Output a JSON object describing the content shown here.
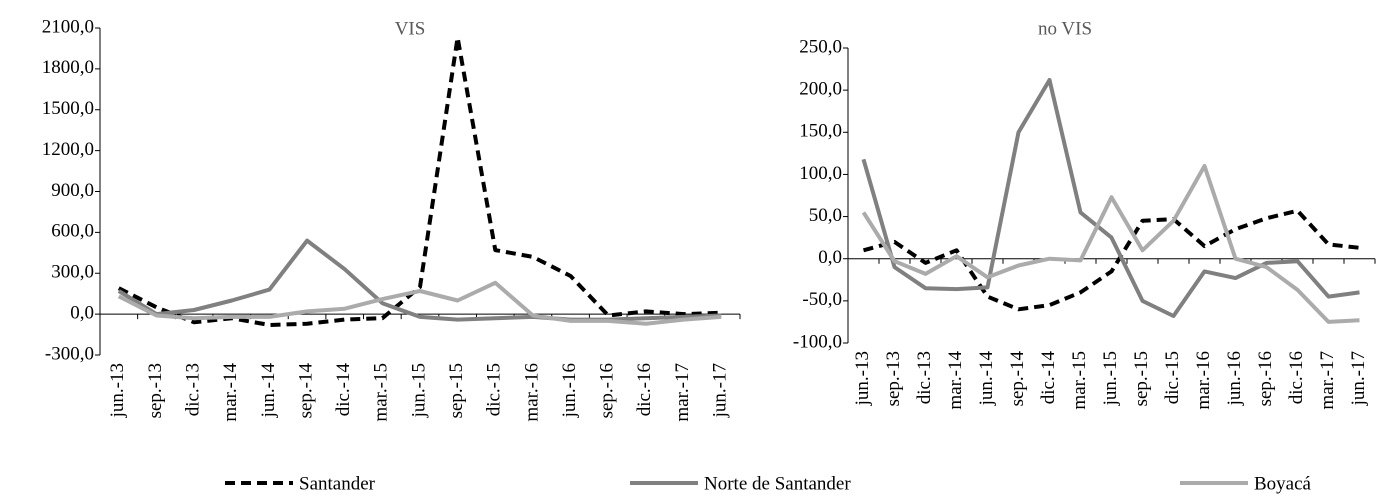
{
  "chart_data": [
    {
      "type": "line",
      "title": "VIS",
      "categories": [
        "jun.-13",
        "sep.-13",
        "dic.-13",
        "mar.-14",
        "jun.-14",
        "sep.-14",
        "dic.-14",
        "mar.-15",
        "jun.-15",
        "sep.-15",
        "dic.-15",
        "mar.-16",
        "jun.-16",
        "sep.-16",
        "dic.-16",
        "mar.-17",
        "jun.-17"
      ],
      "series": [
        {
          "name": "Santander",
          "color": "#000000",
          "dash": true,
          "values": [
            190,
            50,
            -60,
            -30,
            -80,
            -70,
            -40,
            -30,
            200,
            2030,
            470,
            420,
            280,
            -10,
            20,
            0,
            10
          ]
        },
        {
          "name": "Norte de Santander",
          "color": "#808080",
          "dash": false,
          "values": [
            170,
            0,
            30,
            100,
            180,
            540,
            330,
            80,
            -20,
            -40,
            -30,
            -20,
            -40,
            -40,
            -30,
            -20,
            -10
          ]
        },
        {
          "name": "Boyacá",
          "color": "#ababab",
          "dash": false,
          "values": [
            130,
            -10,
            -30,
            -20,
            -20,
            20,
            40,
            110,
            170,
            100,
            230,
            -10,
            -50,
            -50,
            -70,
            -40,
            -20
          ]
        }
      ],
      "ylim": [
        -300,
        2100
      ],
      "yticks": [
        {
          "value": -300,
          "label": "-300,0"
        },
        {
          "value": 0,
          "label": "0,0"
        },
        {
          "value": 300,
          "label": "300,0"
        },
        {
          "value": 600,
          "label": "600,0"
        },
        {
          "value": 900,
          "label": "900,0"
        },
        {
          "value": 1200,
          "label": "1200,0"
        },
        {
          "value": 1500,
          "label": "1500,0"
        },
        {
          "value": 1800,
          "label": "1800,0"
        },
        {
          "value": 2100,
          "label": "2100,0"
        }
      ]
    },
    {
      "type": "line",
      "title": "no VIS",
      "categories": [
        "jun.-13",
        "sep.-13",
        "dic.-13",
        "mar.-14",
        "jun.-14",
        "sep.-14",
        "dic.-14",
        "mar.-15",
        "jun.-15",
        "sep.-15",
        "dic.-15",
        "mar.-16",
        "jun.-16",
        "sep.-16",
        "dic.-16",
        "mar.-17",
        "jun.-17"
      ],
      "series": [
        {
          "color": "#000000",
          "dash": true,
          "values": [
            10,
            20,
            -5,
            10,
            -45,
            -60,
            -55,
            -40,
            -15,
            45,
            47,
            15,
            35,
            48,
            57,
            17,
            13
          ]
        },
        {
          "color": "#808080",
          "dash": false,
          "values": [
            118,
            -10,
            -35,
            -36,
            -34,
            150,
            212,
            55,
            25,
            -50,
            -68,
            -15,
            -23,
            -5,
            -3,
            -45,
            -40
          ]
        },
        {
          "color": "#ababab",
          "dash": false,
          "values": [
            55,
            -3,
            -18,
            3,
            -22,
            -8,
            0,
            -2,
            73,
            10,
            45,
            110,
            0,
            -10,
            -37,
            -75,
            -73
          ]
        }
      ],
      "ylim": [
        -100,
        250
      ],
      "yticks": [
        {
          "value": -100,
          "label": "-100,0"
        },
        {
          "value": -50,
          "label": "-50,0"
        },
        {
          "value": 0,
          "label": "0,0"
        },
        {
          "value": 50,
          "label": "50,0"
        },
        {
          "value": 100,
          "label": "100,0"
        },
        {
          "value": 150,
          "label": "150,0"
        },
        {
          "value": 200,
          "label": "200,0"
        },
        {
          "value": 250,
          "label": "250,0"
        }
      ]
    }
  ]
}
